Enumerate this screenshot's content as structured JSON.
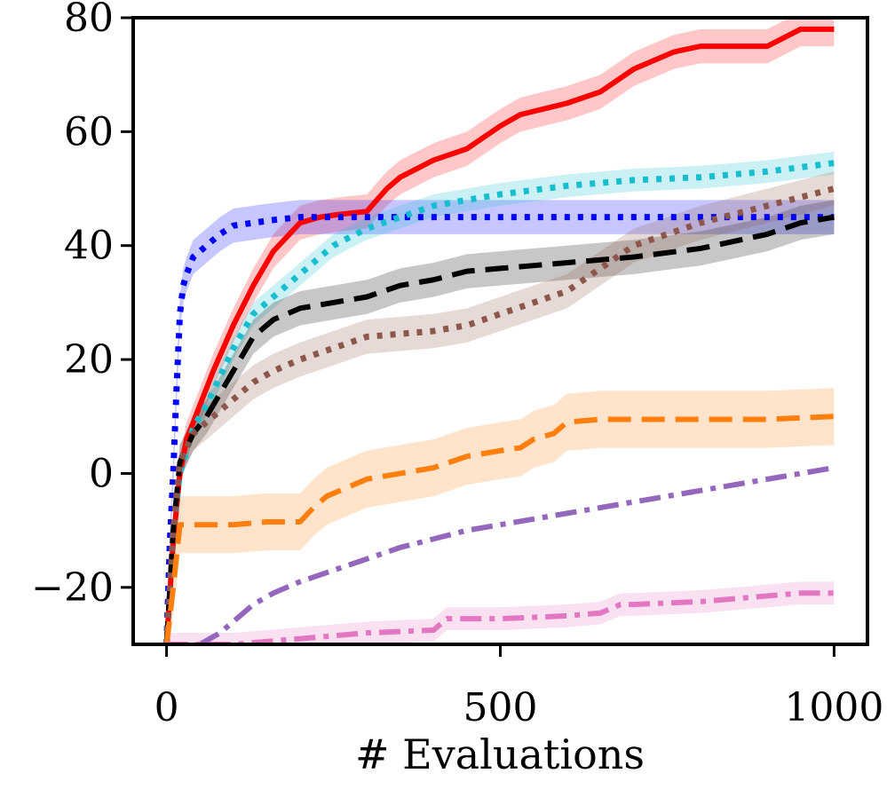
{
  "chart_data": {
    "type": "line",
    "title": "",
    "xlabel": "# Evaluations",
    "ylabel": "",
    "xlim": [
      -50,
      1050
    ],
    "ylim": [
      -30,
      80
    ],
    "xticks": [
      0,
      500,
      1000
    ],
    "xtick_labels": [
      "0",
      "500",
      "1000"
    ],
    "yticks": [
      -20,
      0,
      20,
      40,
      60,
      80
    ],
    "ytick_labels": [
      "−20",
      "0",
      "20",
      "40",
      "60",
      "80"
    ],
    "legend": "none",
    "grid": false,
    "series": [
      {
        "name": "red-solid",
        "color": "#ff0000",
        "style": "solid",
        "x": [
          0,
          10,
          20,
          30,
          50,
          70,
          100,
          130,
          160,
          200,
          230,
          260,
          300,
          330,
          350,
          400,
          450,
          500,
          530,
          600,
          650,
          700,
          760,
          800,
          900,
          950,
          1000
        ],
        "y": [
          -30,
          -12,
          0,
          6,
          12,
          18,
          26,
          33,
          39,
          44,
          45,
          45.5,
          46,
          50,
          52,
          55,
          57,
          61,
          63,
          65,
          67,
          71,
          74,
          75,
          75,
          78,
          78
        ],
        "band": 3
      },
      {
        "name": "blue-dotted",
        "color": "#0000ff",
        "style": "dotted",
        "x": [
          0,
          5,
          10,
          15,
          20,
          25,
          30,
          40,
          60,
          80,
          100,
          130,
          160,
          200,
          300,
          500,
          800,
          1000
        ],
        "y": [
          -30,
          -12,
          0,
          15,
          28,
          33,
          35,
          38,
          40,
          42,
          43.5,
          44,
          44.5,
          45,
          45,
          45,
          45,
          45
        ],
        "band": 3
      },
      {
        "name": "cyan-dotted",
        "color": "#17becf",
        "style": "dotted",
        "x": [
          0,
          10,
          20,
          40,
          60,
          80,
          100,
          130,
          160,
          200,
          250,
          300,
          350,
          400,
          500,
          600,
          700,
          800,
          900,
          1000
        ],
        "y": [
          -30,
          -10,
          0,
          8,
          12,
          17,
          22,
          28,
          31,
          35,
          40,
          43,
          45,
          47,
          49,
          50.5,
          51.5,
          52,
          53,
          54.5
        ],
        "band": 2
      },
      {
        "name": "black-dashed",
        "color": "#000000",
        "style": "dashed",
        "x": [
          0,
          10,
          20,
          40,
          60,
          80,
          100,
          130,
          160,
          200,
          250,
          300,
          350,
          400,
          450,
          500,
          550,
          600,
          700,
          800,
          900,
          950,
          1000
        ],
        "y": [
          -30,
          -10,
          2,
          7,
          10,
          14,
          18,
          24,
          27,
          29,
          30,
          31,
          33,
          34,
          35.5,
          36,
          36.5,
          37,
          38,
          39.5,
          42,
          44,
          45
        ],
        "band": 3
      },
      {
        "name": "brown-dotted",
        "color": "#8c564b",
        "style": "dotted",
        "x": [
          0,
          10,
          20,
          40,
          60,
          80,
          100,
          130,
          160,
          200,
          250,
          300,
          400,
          450,
          500,
          550,
          600,
          650,
          700,
          800,
          900,
          1000
        ],
        "y": [
          -30,
          -10,
          2,
          7,
          9,
          11,
          13,
          16,
          18,
          20,
          22,
          24,
          25,
          26,
          28,
          30,
          32,
          36,
          40,
          44,
          47,
          50
        ],
        "band": 3
      },
      {
        "name": "orange-dashed",
        "color": "#ff7f0e",
        "style": "dashed",
        "x": [
          0,
          10,
          20,
          40,
          100,
          150,
          200,
          220,
          240,
          270,
          300,
          350,
          400,
          450,
          500,
          530,
          550,
          580,
          600,
          650,
          700,
          800,
          900,
          1000
        ],
        "y": [
          -30,
          -20,
          -9,
          -9,
          -9,
          -8.5,
          -8.5,
          -6,
          -4,
          -2.5,
          -1,
          0,
          1,
          3,
          4,
          4.5,
          6,
          7,
          9,
          9.5,
          9.5,
          9.5,
          9.5,
          10
        ],
        "band": 5
      },
      {
        "name": "purple-dashdot",
        "color": "#9467bd",
        "style": "dashdot",
        "x": [
          50,
          80,
          100,
          130,
          160,
          200,
          250,
          300,
          350,
          400,
          450,
          500,
          550,
          600,
          650,
          700,
          750,
          800,
          850,
          900,
          950,
          1000
        ],
        "y": [
          -30,
          -28,
          -26,
          -23,
          -21,
          -19,
          -17,
          -15,
          -13,
          -11.5,
          -10,
          -9,
          -8,
          -7,
          -6,
          -5,
          -4,
          -3,
          -2,
          -1,
          0,
          1
        ],
        "band": 0
      },
      {
        "name": "pink-dashdot",
        "color": "#e377c2",
        "style": "dashdot",
        "x": [
          0,
          100,
          200,
          300,
          400,
          420,
          450,
          500,
          600,
          650,
          680,
          700,
          800,
          850,
          900,
          950,
          1000
        ],
        "y": [
          -30,
          -30,
          -29,
          -28,
          -27.5,
          -25.5,
          -25.5,
          -25.5,
          -25,
          -24.5,
          -23,
          -23,
          -22.5,
          -22,
          -21.5,
          -21,
          -21
        ],
        "band": 2
      }
    ]
  }
}
